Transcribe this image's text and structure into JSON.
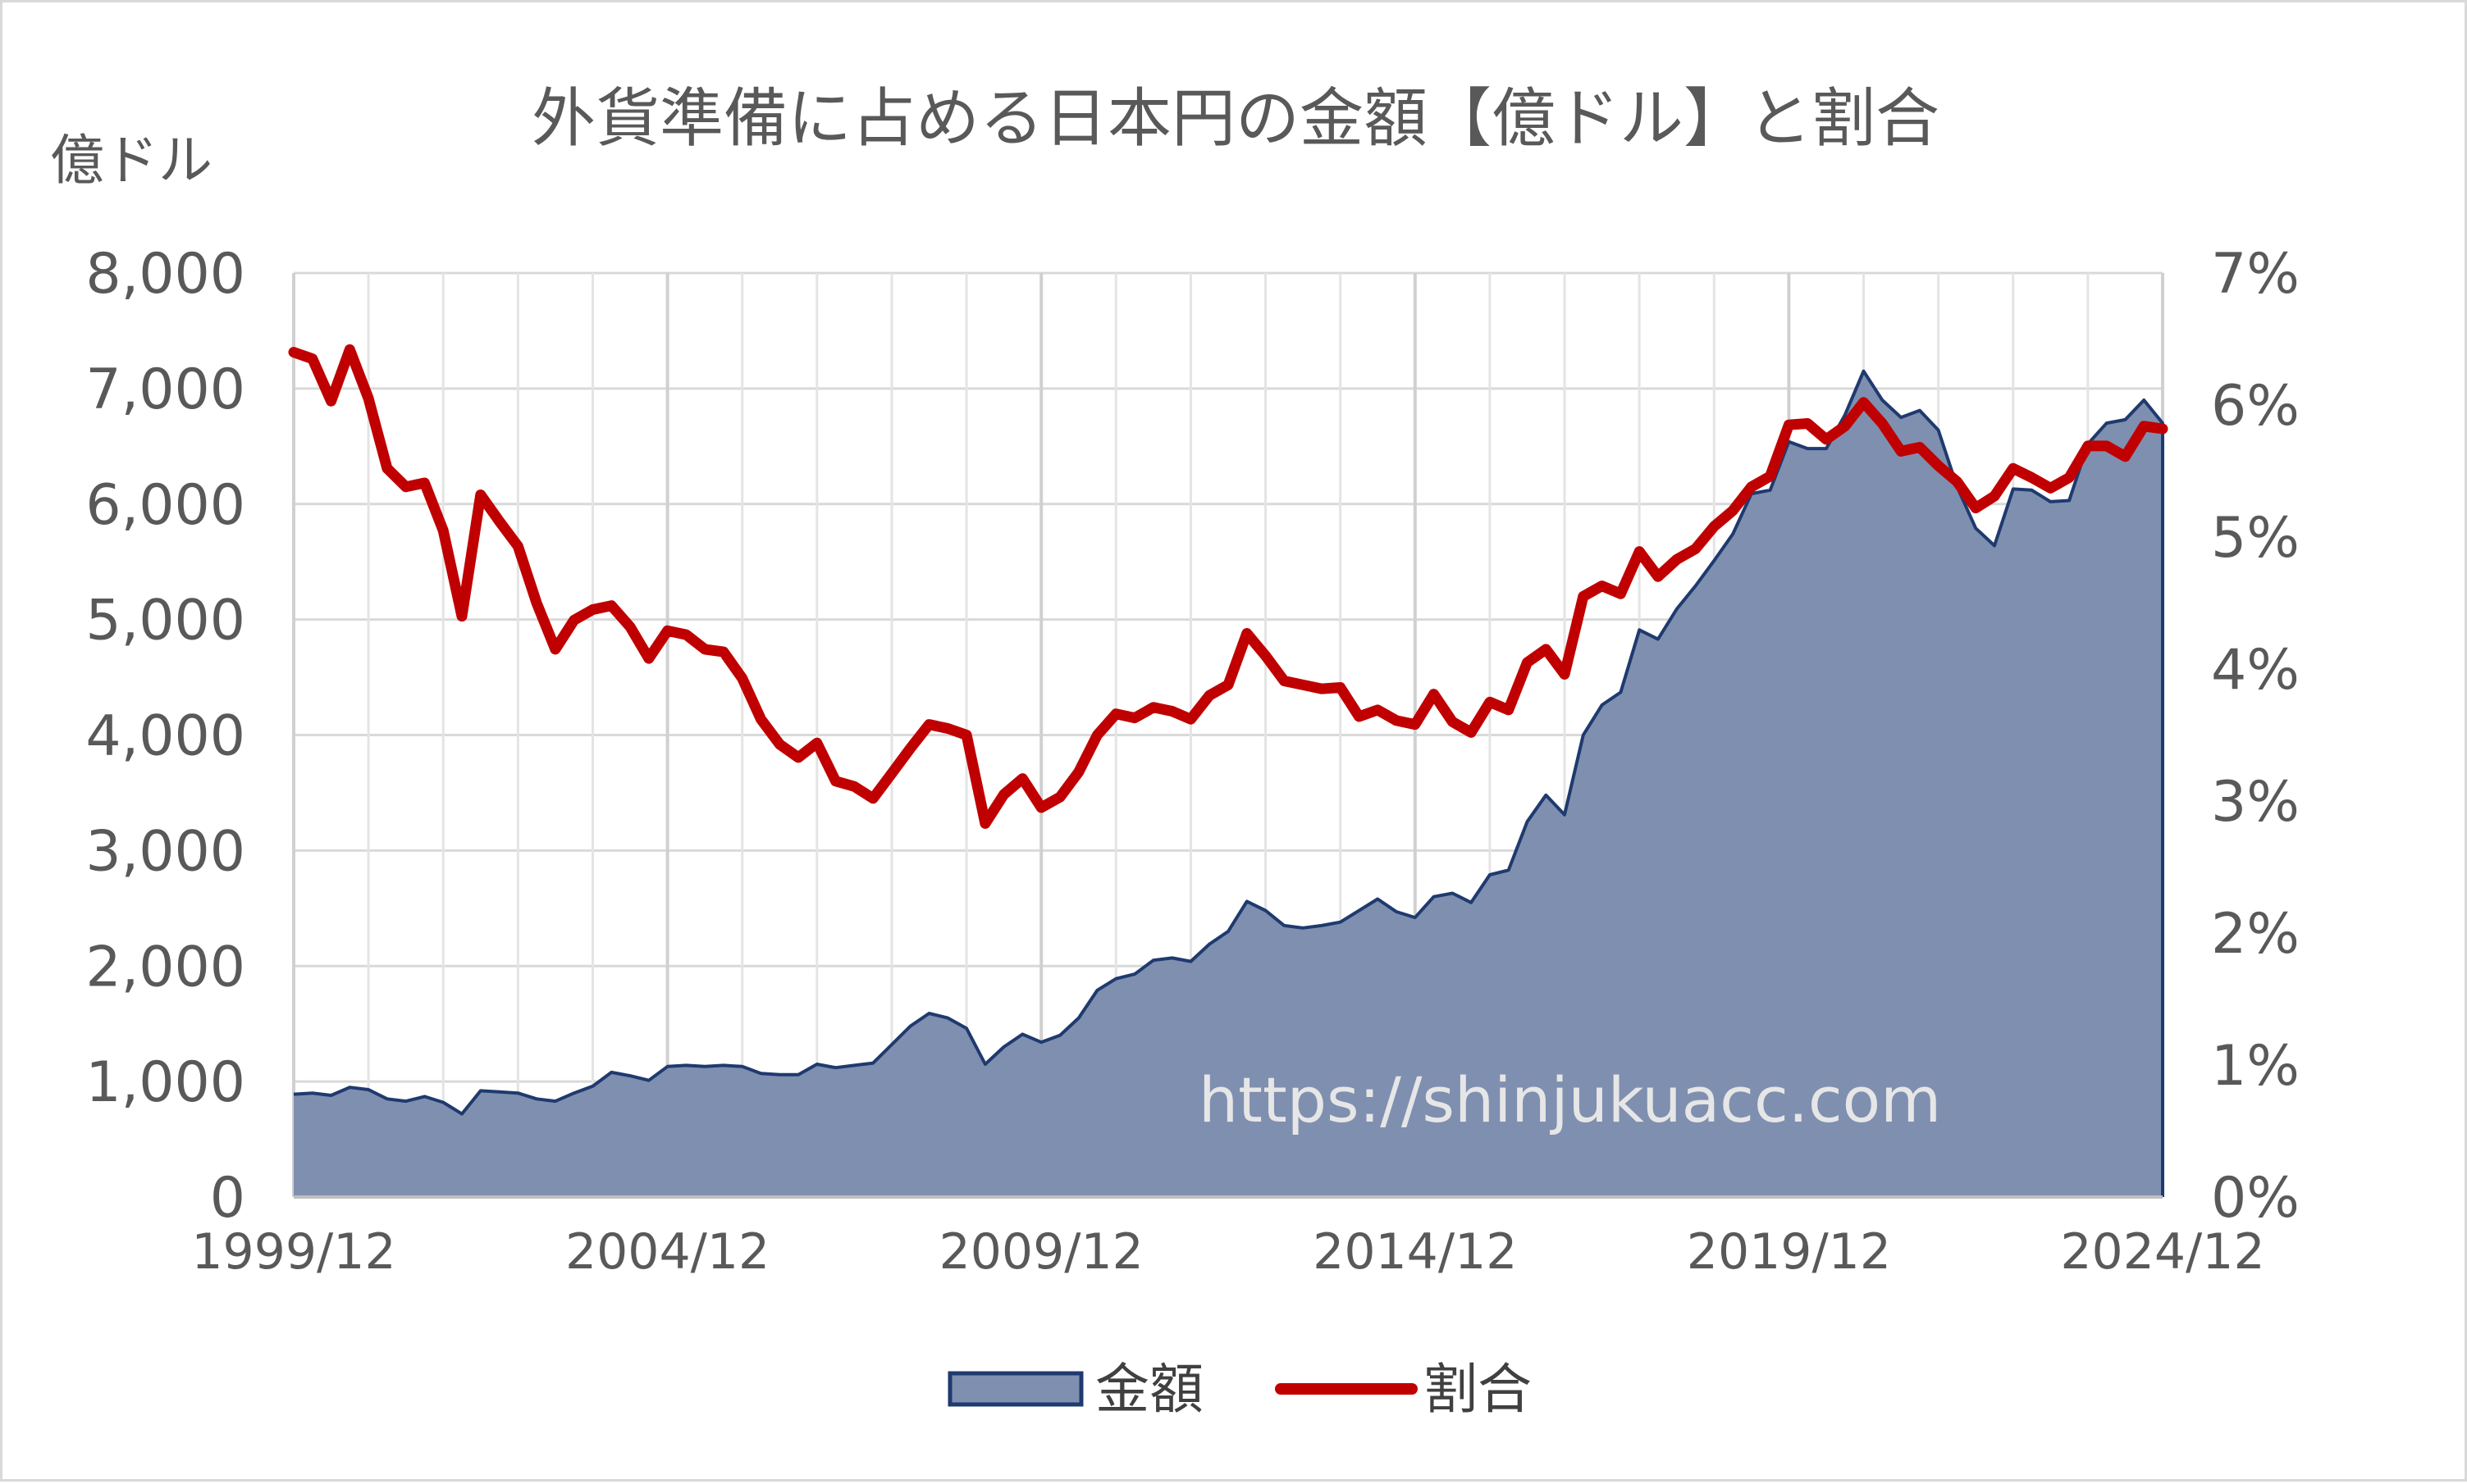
{
  "chart_data": {
    "type": "area+line",
    "title": "外貨準備に占める日本円の金額【億ドル】と割合",
    "ylabel": "億ドル",
    "xlabel": "",
    "ylim": [
      0,
      8000
    ],
    "y2lim": [
      0,
      7
    ],
    "y_ticks": [
      "0",
      "1,000",
      "2,000",
      "3,000",
      "4,000",
      "5,000",
      "6,000",
      "7,000",
      "8,000"
    ],
    "y2_ticks": [
      "0%",
      "1%",
      "2%",
      "3%",
      "4%",
      "5%",
      "6%",
      "7%"
    ],
    "x_ticks": [
      "1999/12",
      "2004/12",
      "2009/12",
      "2014/12",
      "2019/12",
      "2024/12"
    ],
    "x_start": "1999/12",
    "x_end": "2024/12",
    "x_step": "quarter",
    "grid": true,
    "legend_position": "bottom",
    "watermark": "https://shinjukuacc.com",
    "colors": {
      "amount_fill": "#7f8fb0",
      "amount_line": "#1f3a6e",
      "share_line": "#c00000"
    },
    "series": [
      {
        "name": "金額",
        "type": "area",
        "axis": "left",
        "values": [
          890,
          900,
          880,
          950,
          930,
          850,
          830,
          870,
          820,
          720,
          920,
          910,
          900,
          850,
          830,
          900,
          960,
          1080,
          1050,
          1010,
          1130,
          1140,
          1130,
          1140,
          1130,
          1070,
          1060,
          1060,
          1150,
          1120,
          1140,
          1160,
          1320,
          1480,
          1590,
          1550,
          1460,
          1150,
          1300,
          1410,
          1340,
          1400,
          1550,
          1790,
          1890,
          1930,
          2050,
          2070,
          2040,
          2190,
          2300,
          2560,
          2480,
          2350,
          2330,
          2350,
          2380,
          2480,
          2580,
          2470,
          2420,
          2600,
          2630,
          2550,
          2790,
          2830,
          3250,
          3480,
          3310,
          4000,
          4260,
          4370,
          4910,
          4830,
          5090,
          5290,
          5510,
          5740,
          6090,
          6120,
          6540,
          6480,
          6480,
          6770,
          7150,
          6900,
          6750,
          6810,
          6640,
          6150,
          5790,
          5640,
          6130,
          6120,
          6020,
          6030,
          6520,
          6700,
          6730,
          6900,
          6700
        ]
      },
      {
        "name": "割合",
        "type": "line",
        "axis": "right",
        "unit": "%",
        "values": [
          6.4,
          6.35,
          6.03,
          6.42,
          6.05,
          5.52,
          5.38,
          5.41,
          5.05,
          4.4,
          5.32,
          5.12,
          4.93,
          4.5,
          4.15,
          4.37,
          4.45,
          4.48,
          4.32,
          4.08,
          4.29,
          4.26,
          4.15,
          4.13,
          3.93,
          3.62,
          3.43,
          3.33,
          3.44,
          3.15,
          3.11,
          3.02,
          3.21,
          3.4,
          3.58,
          3.55,
          3.5,
          2.83,
          3.05,
          3.17,
          2.95,
          3.03,
          3.22,
          3.5,
          3.66,
          3.63,
          3.71,
          3.68,
          3.62,
          3.8,
          3.88,
          4.27,
          4.1,
          3.91,
          3.88,
          3.85,
          3.86,
          3.64,
          3.69,
          3.61,
          3.58,
          3.81,
          3.6,
          3.52,
          3.75,
          3.69,
          4.05,
          4.15,
          3.96,
          4.55,
          4.63,
          4.57,
          4.89,
          4.7,
          4.83,
          4.91,
          5.08,
          5.2,
          5.38,
          5.46,
          5.85,
          5.86,
          5.74,
          5.84,
          6.02,
          5.86,
          5.65,
          5.68,
          5.54,
          5.42,
          5.22,
          5.31,
          5.52,
          5.45,
          5.37,
          5.45,
          5.69,
          5.69,
          5.61,
          5.84,
          5.82
        ]
      }
    ]
  }
}
